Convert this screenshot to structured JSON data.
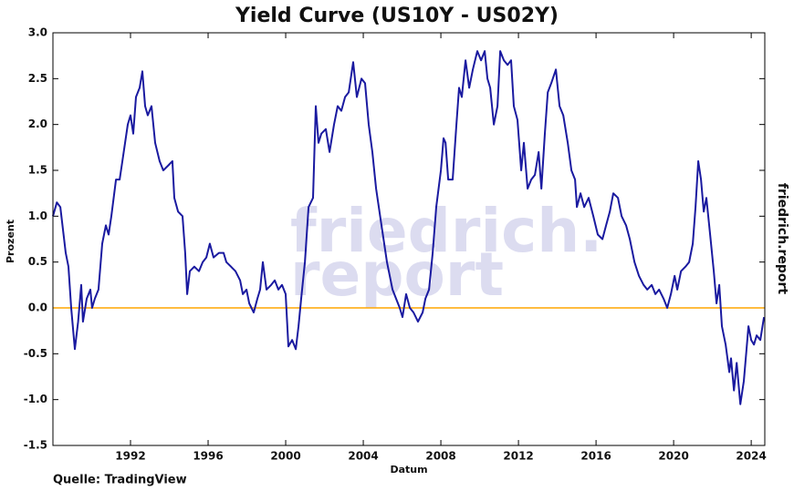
{
  "chart_data": {
    "type": "line",
    "title": "Yield Curve (US10Y - US02Y)",
    "x_label": "Datum",
    "y_label": "Prozent",
    "side_label": "friedrich.report",
    "source": "Quelle: TradingView",
    "watermark": [
      "friedrich.",
      "report"
    ],
    "x": [
      1988.0,
      1988.2,
      1988.38,
      1988.66,
      1988.8,
      1988.94,
      1989.13,
      1989.3,
      1989.46,
      1989.55,
      1989.74,
      1989.93,
      1990.02,
      1990.16,
      1990.35,
      1990.54,
      1990.73,
      1990.87,
      1991.01,
      1991.25,
      1991.44,
      1991.58,
      1991.86,
      1992.0,
      1992.14,
      1992.28,
      1992.47,
      1992.61,
      1992.75,
      1992.89,
      1993.08,
      1993.27,
      1993.5,
      1993.69,
      1993.93,
      1994.16,
      1994.26,
      1994.45,
      1994.68,
      1994.82,
      1994.92,
      1995.06,
      1995.29,
      1995.53,
      1995.72,
      1995.91,
      1996.09,
      1996.28,
      1996.56,
      1996.8,
      1996.94,
      1997.18,
      1997.41,
      1997.65,
      1997.79,
      1997.98,
      1998.12,
      1998.35,
      1998.54,
      1998.68,
      1998.82,
      1999.01,
      1999.25,
      1999.44,
      1999.62,
      1999.81,
      2000.0,
      2000.14,
      2000.33,
      2000.52,
      2000.66,
      2000.8,
      2000.99,
      2001.18,
      2001.41,
      2001.55,
      2001.69,
      2001.84,
      2002.07,
      2002.26,
      2002.49,
      2002.68,
      2002.87,
      2003.06,
      2003.25,
      2003.48,
      2003.67,
      2003.91,
      2004.09,
      2004.28,
      2004.47,
      2004.66,
      2004.94,
      2005.22,
      2005.51,
      2005.69,
      2005.88,
      2006.02,
      2006.21,
      2006.4,
      2006.59,
      2006.82,
      2007.06,
      2007.2,
      2007.39,
      2007.58,
      2007.76,
      2008.0,
      2008.14,
      2008.24,
      2008.38,
      2008.61,
      2008.8,
      2008.94,
      2009.08,
      2009.27,
      2009.46,
      2009.65,
      2009.88,
      2010.07,
      2010.26,
      2010.4,
      2010.54,
      2010.73,
      2010.92,
      2011.06,
      2011.25,
      2011.44,
      2011.62,
      2011.76,
      2011.95,
      2012.14,
      2012.28,
      2012.47,
      2012.66,
      2012.85,
      2013.04,
      2013.18,
      2013.36,
      2013.51,
      2013.69,
      2013.93,
      2014.12,
      2014.31,
      2014.54,
      2014.73,
      2014.92,
      2015.01,
      2015.2,
      2015.39,
      2015.62,
      2015.86,
      2016.09,
      2016.33,
      2016.52,
      2016.71,
      2016.89,
      2017.13,
      2017.32,
      2017.55,
      2017.74,
      2017.98,
      2018.21,
      2018.45,
      2018.64,
      2018.87,
      2019.06,
      2019.25,
      2019.48,
      2019.67,
      2019.86,
      2020.05,
      2020.19,
      2020.38,
      2020.61,
      2020.8,
      2020.99,
      2021.13,
      2021.27,
      2021.41,
      2021.55,
      2021.69,
      2021.88,
      2022.07,
      2022.21,
      2022.35,
      2022.49,
      2022.68,
      2022.87,
      2022.96,
      2023.11,
      2023.25,
      2023.44,
      2023.62,
      2023.76,
      2023.86,
      2024.0,
      2024.14,
      2024.28,
      2024.47,
      2024.66
    ],
    "series": [
      {
        "name": "US10Y - US02Y",
        "color": "#1a1aa0",
        "values": [
          1.0,
          1.15,
          1.1,
          0.6,
          0.45,
          0.0,
          -0.45,
          -0.15,
          0.25,
          -0.15,
          0.1,
          0.2,
          0.0,
          0.1,
          0.2,
          0.7,
          0.9,
          0.8,
          1.0,
          1.4,
          1.4,
          1.6,
          2.0,
          2.1,
          1.9,
          2.3,
          2.4,
          2.58,
          2.2,
          2.1,
          2.2,
          1.8,
          1.6,
          1.5,
          1.55,
          1.6,
          1.2,
          1.05,
          1.0,
          0.6,
          0.15,
          0.4,
          0.45,
          0.4,
          0.5,
          0.55,
          0.7,
          0.55,
          0.6,
          0.6,
          0.5,
          0.45,
          0.4,
          0.3,
          0.15,
          0.2,
          0.05,
          -0.05,
          0.1,
          0.2,
          0.5,
          0.2,
          0.25,
          0.3,
          0.2,
          0.25,
          0.15,
          -0.42,
          -0.35,
          -0.45,
          -0.2,
          0.1,
          0.5,
          1.1,
          1.2,
          2.2,
          1.8,
          1.9,
          1.95,
          1.7,
          2.0,
          2.2,
          2.15,
          2.3,
          2.35,
          2.68,
          2.3,
          2.5,
          2.45,
          2.0,
          1.7,
          1.3,
          0.9,
          0.5,
          0.2,
          0.1,
          0.0,
          -0.1,
          0.15,
          0.0,
          -0.05,
          -0.15,
          -0.05,
          0.1,
          0.2,
          0.6,
          1.1,
          1.5,
          1.85,
          1.8,
          1.4,
          1.4,
          2.0,
          2.4,
          2.3,
          2.7,
          2.4,
          2.6,
          2.8,
          2.7,
          2.8,
          2.5,
          2.4,
          2.0,
          2.2,
          2.8,
          2.7,
          2.65,
          2.7,
          2.2,
          2.05,
          1.5,
          1.8,
          1.3,
          1.4,
          1.45,
          1.7,
          1.3,
          1.9,
          2.35,
          2.45,
          2.6,
          2.2,
          2.1,
          1.8,
          1.5,
          1.4,
          1.1,
          1.25,
          1.1,
          1.2,
          1.0,
          0.8,
          0.75,
          0.9,
          1.05,
          1.25,
          1.2,
          1.0,
          0.9,
          0.75,
          0.5,
          0.35,
          0.25,
          0.2,
          0.25,
          0.15,
          0.2,
          0.1,
          0.0,
          0.15,
          0.35,
          0.2,
          0.4,
          0.45,
          0.5,
          0.7,
          1.1,
          1.6,
          1.4,
          1.05,
          1.2,
          0.8,
          0.4,
          0.05,
          0.25,
          -0.2,
          -0.4,
          -0.7,
          -0.55,
          -0.9,
          -0.6,
          -1.05,
          -0.8,
          -0.45,
          -0.2,
          -0.35,
          -0.4,
          -0.3,
          -0.35,
          -0.1
        ]
      }
    ],
    "reference_line": {
      "value": 0,
      "color": "#ffa500"
    },
    "xlim": [
      1988,
      2024.7
    ],
    "xticks": [
      1992,
      1996,
      2000,
      2004,
      2008,
      2012,
      2016,
      2020,
      2024
    ],
    "ylim": [
      -1.5,
      3.0
    ],
    "yticks": [
      -1.5,
      {
        "value": -1,
        "label": "-1.0"
      },
      -0.5,
      {
        "value": 0,
        "label": "0.0"
      },
      0.5,
      {
        "value": 1,
        "label": "1.0"
      },
      1.5,
      {
        "value": 2,
        "label": "2.0"
      },
      2.5,
      {
        "value": 3,
        "label": "3.0"
      }
    ]
  }
}
